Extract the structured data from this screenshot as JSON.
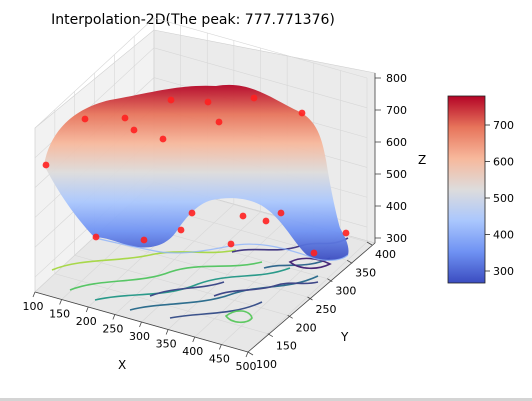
{
  "chart_data": {
    "type": "surface3d",
    "title": "Interpolation-2D(The peak: 777.771376)",
    "xlabel": "X",
    "ylabel": "Y",
    "zlabel": "Z",
    "x_ticks": [
      "100",
      "150",
      "200",
      "250",
      "300",
      "350",
      "400",
      "450",
      "500"
    ],
    "y_ticks": [
      "100",
      "150",
      "200",
      "250",
      "300",
      "350",
      "400"
    ],
    "z_ticks": [
      "300",
      "400",
      "500",
      "600",
      "700",
      "800"
    ],
    "colorbar_ticks": [
      "300",
      "400",
      "500",
      "600",
      "700"
    ],
    "xlim": [
      100,
      500
    ],
    "ylim": [
      100,
      400
    ],
    "zlim": [
      250,
      800
    ],
    "colormap": "coolwarm",
    "colormap_stops": [
      "#3b4cc0",
      "#6f92f3",
      "#aac7fd",
      "#dddcdc",
      "#f7b89c",
      "#e7745b",
      "#b40426"
    ],
    "contour_colormap": "viridis",
    "scatter_color": "#ff2020",
    "grid": true,
    "legend": "colorbar-right"
  }
}
